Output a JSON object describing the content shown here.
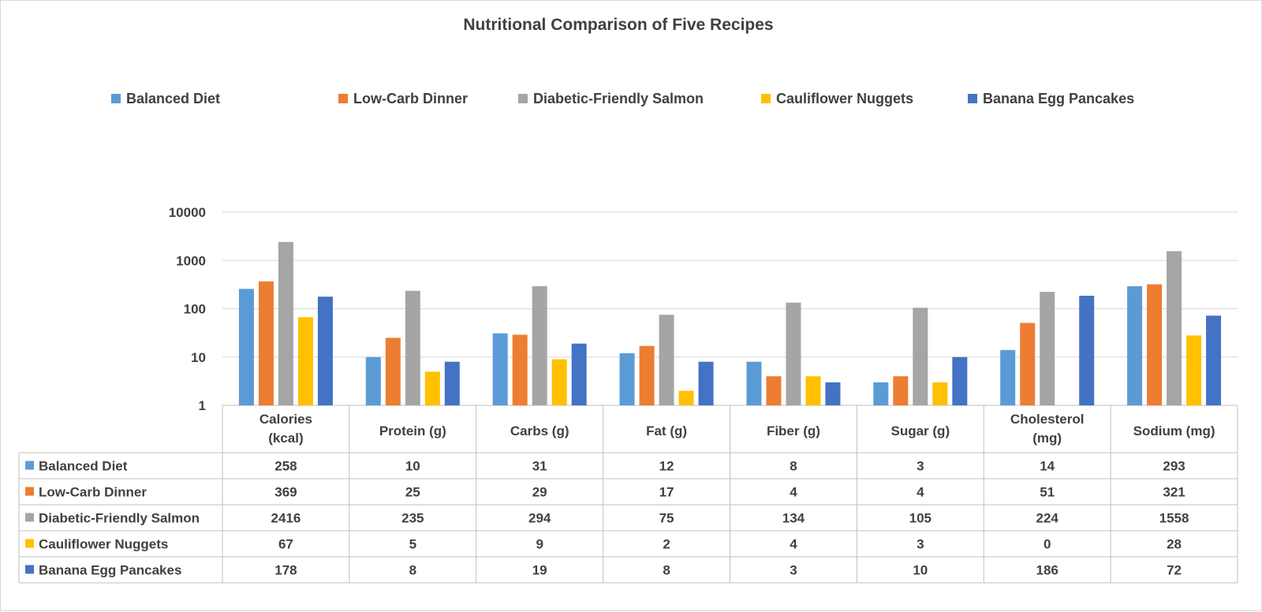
{
  "chart_data": {
    "type": "bar",
    "title": "Nutritional Comparison of Five Recipes",
    "y_scale": "log",
    "ylim": [
      1,
      10000
    ],
    "y_ticks": [
      "1",
      "10",
      "100",
      "1000",
      "10000"
    ],
    "grid": true,
    "legend_position": "top",
    "data_table": true,
    "categories": [
      [
        "Calories",
        "(kcal)"
      ],
      [
        "Protein (g)"
      ],
      [
        "Carbs (g)"
      ],
      [
        "Fat (g)"
      ],
      [
        "Fiber (g)"
      ],
      [
        "Sugar (g)"
      ],
      [
        "Cholesterol",
        "(mg)"
      ],
      [
        "Sodium (mg)"
      ]
    ],
    "series": [
      {
        "name": "Balanced Diet",
        "color": "#5b9bd5",
        "values": [
          258,
          10,
          31,
          12,
          8,
          3,
          14,
          293
        ]
      },
      {
        "name": "Low-Carb Dinner",
        "color": "#ed7d31",
        "values": [
          369,
          25,
          29,
          17,
          4,
          4,
          51,
          321
        ]
      },
      {
        "name": "Diabetic-Friendly Salmon",
        "color": "#a5a5a5",
        "values": [
          2416,
          235,
          294,
          75,
          134,
          105,
          224,
          1558
        ]
      },
      {
        "name": "Cauliflower Nuggets",
        "color": "#ffc000",
        "values": [
          67,
          5,
          9,
          2,
          4,
          3,
          0,
          28
        ]
      },
      {
        "name": "Banana Egg Pancakes",
        "color": "#4472c4",
        "values": [
          178,
          8,
          19,
          8,
          3,
          10,
          186,
          72
        ]
      }
    ]
  }
}
